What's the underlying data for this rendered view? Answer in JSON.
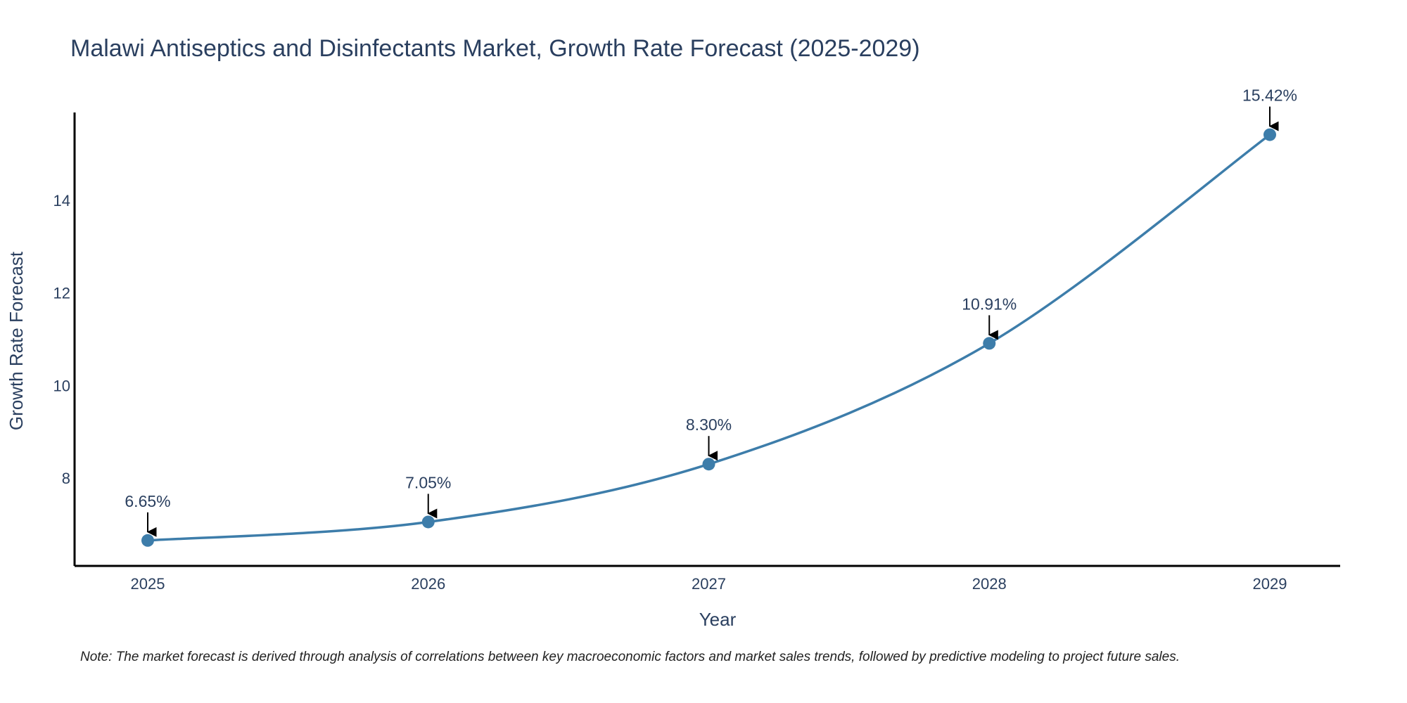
{
  "colors": {
    "line": "#3d7daa",
    "marker": "#3d7daa",
    "axis": "#000000",
    "text": "#2a3f5f",
    "arrow": "#000000"
  },
  "chart_data": {
    "type": "line",
    "title": "Malawi Antiseptics and Disinfectants Market, Growth Rate Forecast (2025-2029)",
    "xlabel": "Year",
    "ylabel": "Growth Rate Forecast",
    "categories": [
      "2025",
      "2026",
      "2027",
      "2028",
      "2029"
    ],
    "values": [
      6.65,
      7.05,
      8.3,
      10.91,
      15.42
    ],
    "data_labels": [
      "6.65%",
      "7.05%",
      "8.30%",
      "10.91%",
      "15.42%"
    ],
    "yticks": [
      8,
      10,
      12,
      14
    ],
    "ylim": [
      6.1,
      15.9
    ],
    "grid": false,
    "note": "Note: The market forecast is derived through analysis of correlations between key macroeconomic factors and market sales trends, followed by predictive modeling to project future sales."
  }
}
